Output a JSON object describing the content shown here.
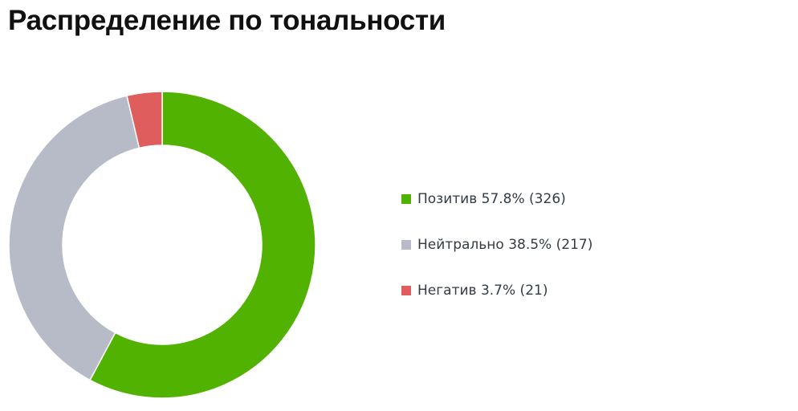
{
  "title": "Распределение по тональности",
  "chart_data": {
    "type": "pie",
    "title": "Распределение по тональности",
    "donut": true,
    "legend_position": "right",
    "series": [
      {
        "name": "Позитив",
        "percent": 57.8,
        "count": 326,
        "color": "#52b202",
        "label": "Позитив 57.8% (326)"
      },
      {
        "name": "Нейтрально",
        "percent": 38.5,
        "count": 217,
        "color": "#b7bbc7",
        "label": "Нейтрально 38.5% (217)"
      },
      {
        "name": "Негатив",
        "percent": 3.7,
        "count": 21,
        "color": "#e05d5d",
        "label": "Негатив 3.7% (21)"
      }
    ]
  }
}
